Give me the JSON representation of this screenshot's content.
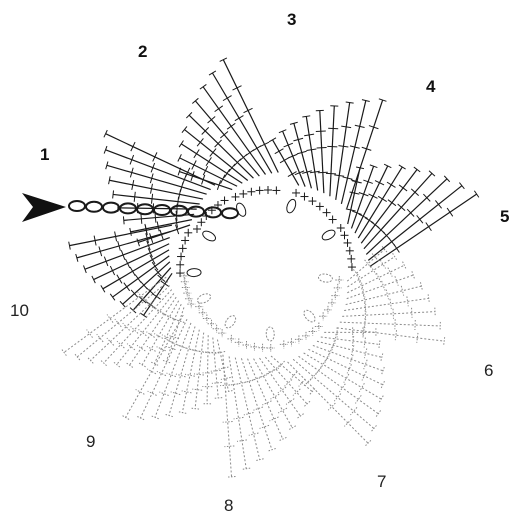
{
  "diagram": {
    "segments": [
      {
        "label": "1",
        "style": "solid"
      },
      {
        "label": "2",
        "style": "solid"
      },
      {
        "label": "3",
        "style": "solid"
      },
      {
        "label": "4",
        "style": "solid"
      },
      {
        "label": "5",
        "style": "solid"
      },
      {
        "label": "6",
        "style": "dashed"
      },
      {
        "label": "7",
        "style": "dashed"
      },
      {
        "label": "8",
        "style": "dashed"
      },
      {
        "label": "9",
        "style": "dashed"
      },
      {
        "label": "10",
        "style": "dashed"
      }
    ],
    "start_arrow": "arrow-right-icon",
    "colors": {
      "ink": "#1a1a1a",
      "faint": "#8a8a8a",
      "background": "#ffffff"
    }
  }
}
